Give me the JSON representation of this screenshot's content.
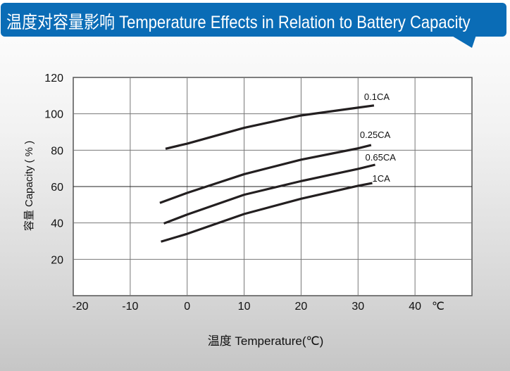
{
  "header": {
    "title": "温度对容量影响 Temperature Effects in Relation to Battery Capacity",
    "color": "#0a6cb6"
  },
  "chart_data": {
    "type": "line",
    "title": "",
    "xlabel": "温度  Temperature(℃)",
    "ylabel": "容量 Capacity ( % )",
    "x_unit": "℃",
    "xlim": [
      -20,
      50
    ],
    "ylim": [
      0,
      120
    ],
    "xticks": [
      -20,
      -10,
      0,
      10,
      20,
      30,
      40
    ],
    "yticks": [
      20,
      40,
      60,
      80,
      100,
      120
    ],
    "grid": true,
    "series": [
      {
        "name": "0.1CA",
        "x": [
          -3.8,
          0,
          10,
          20,
          30,
          32.8
        ],
        "y": [
          80.8,
          83.6,
          92.3,
          99.1,
          103.4,
          104.6
        ]
      },
      {
        "name": "0.25CA",
        "x": [
          -4.8,
          0,
          10,
          20,
          30,
          32.3
        ],
        "y": [
          51,
          56.5,
          66.8,
          74.8,
          81,
          82.8
        ]
      },
      {
        "name": "0.65CA",
        "x": [
          -4.1,
          0,
          10,
          20,
          30,
          33
        ],
        "y": [
          39.7,
          44.6,
          55.5,
          63,
          69.7,
          72
        ]
      },
      {
        "name": "1CA",
        "x": [
          -4.6,
          0,
          10,
          20,
          30,
          32.5
        ],
        "y": [
          29.7,
          34,
          44.9,
          53.3,
          60.4,
          61.9
        ]
      }
    ]
  }
}
